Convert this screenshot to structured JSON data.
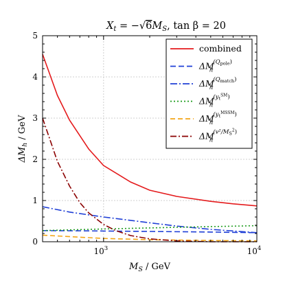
{
  "chart_data": {
    "type": "line",
    "title": "X_t = −√6 M_S, tan β = 20",
    "title_parts": {
      "lhs": "X",
      "lhs_sub": "t",
      "eq": " = −",
      "root": "6",
      "ms": "M",
      "ms_sub": "S",
      "tan": ", tan β = 20"
    },
    "xlabel": "M_S / GeV",
    "xlabel_parts": {
      "var": "M",
      "sub": "S",
      "unit": " / GeV"
    },
    "ylabel": "ΔM_h / GeV",
    "ylabel_parts": {
      "var": "ΔM",
      "sub": "h",
      "unit": " / GeV"
    },
    "x_scale": "log",
    "xlim": [
      400,
      10000
    ],
    "ylim": [
      0,
      5
    ],
    "x_ticks": [
      {
        "value": 1000,
        "label": "10",
        "exp": "3"
      },
      {
        "value": 10000,
        "label": "10",
        "exp": "4"
      }
    ],
    "y_ticks": [
      {
        "value": 0,
        "label": "0"
      },
      {
        "value": 1,
        "label": "1"
      },
      {
        "value": 2,
        "label": "2"
      },
      {
        "value": 3,
        "label": "3"
      },
      {
        "value": 4,
        "label": "4"
      },
      {
        "value": 5,
        "label": "5"
      }
    ],
    "grid": true,
    "legend_position": "top-right",
    "series": [
      {
        "name": "combined",
        "legend": {
          "main": "combined"
        },
        "color": "#e41a1c",
        "dash": "solid",
        "x": [
          400,
          500,
          600,
          800,
          1000,
          1500,
          2000,
          3000,
          5000,
          7000,
          10000
        ],
        "y": [
          4.55,
          3.55,
          2.95,
          2.25,
          1.85,
          1.45,
          1.25,
          1.1,
          0.98,
          0.92,
          0.87
        ]
      },
      {
        "name": "ΔM_h^(Q_pole)",
        "legend": {
          "main": "ΔM",
          "sub": "h",
          "sup": "(Q",
          "supsub": "pole",
          "supend": ")"
        },
        "color": "#1f3fd6",
        "dash": "8,4",
        "x": [
          400,
          700,
          1000,
          2000,
          5000,
          10000
        ],
        "y": [
          0.27,
          0.265,
          0.26,
          0.25,
          0.235,
          0.22
        ]
      },
      {
        "name": "ΔM_h^(Q_match)",
        "legend": {
          "main": "ΔM",
          "sub": "h",
          "sup": "(Q",
          "supsub": "match",
          "supend": ")"
        },
        "color": "#1f3fd6",
        "dash": "10,3,2,3",
        "x": [
          400,
          600,
          1000,
          2000,
          3000,
          5000,
          10000
        ],
        "y": [
          0.85,
          0.72,
          0.6,
          0.46,
          0.38,
          0.3,
          0.22
        ]
      },
      {
        "name": "ΔM_h^(y_t^SM)",
        "legend": {
          "main": "ΔM",
          "sub": "h",
          "sup": "(y",
          "supsub": "t",
          "supsup": "SM",
          "supend": ")"
        },
        "color": "#1a9a1a",
        "dash": "2,3",
        "x": [
          400,
          1000,
          3000,
          10000
        ],
        "y": [
          0.27,
          0.31,
          0.35,
          0.39
        ]
      },
      {
        "name": "ΔM_h^(y_t^MSSM)",
        "legend": {
          "main": "ΔM",
          "sub": "h",
          "sup": "(y",
          "supsub": "t",
          "supsup": "MSSM",
          "supend": ")"
        },
        "color": "#f2a516",
        "dash": "7,4",
        "x": [
          400,
          700,
          1000,
          2000,
          5000,
          10000
        ],
        "y": [
          0.16,
          0.11,
          0.08,
          0.05,
          0.03,
          0.02
        ]
      },
      {
        "name": "ΔM_h^(v²/M_S²)",
        "legend": {
          "main": "ΔM",
          "sub": "h",
          "sup": "(v²/M",
          "supsub": "S",
          "supsup": "2",
          "supend": ")"
        },
        "color": "#8b0000",
        "dash": "9,3,2,3",
        "x": [
          400,
          500,
          600,
          700,
          800,
          1000,
          1200,
          1500,
          2000,
          3000,
          5000,
          10000
        ],
        "y": [
          3.0,
          1.95,
          1.35,
          0.95,
          0.7,
          0.42,
          0.27,
          0.15,
          0.07,
          0.02,
          0.0,
          0.0
        ]
      }
    ]
  }
}
